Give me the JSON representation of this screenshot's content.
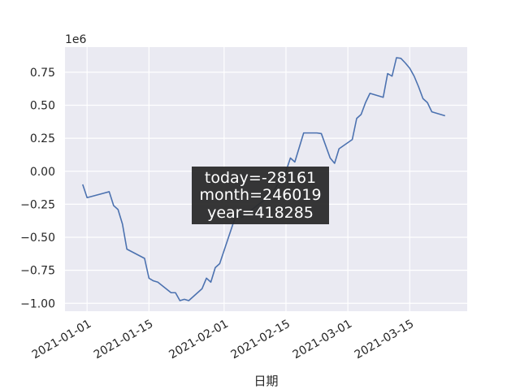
{
  "chart_data": {
    "type": "line",
    "xlabel": "日期",
    "ylabel": "",
    "y_offset_label": "1e6",
    "y_scale": 1000000,
    "xlim": [
      "2020-12-27",
      "2021-03-28"
    ],
    "ylim": [
      -1.06,
      0.94
    ],
    "x_ticks": [
      "2021-01-01",
      "2021-01-15",
      "2021-02-01",
      "2021-02-15",
      "2021-03-01",
      "2021-03-15"
    ],
    "y_ticks": [
      -1.0,
      -0.75,
      -0.5,
      -0.25,
      0.0,
      0.25,
      0.5,
      0.75
    ],
    "y_tick_labels": [
      "−1.00",
      "−0.75",
      "−0.50",
      "−0.25",
      "0.00",
      "0.25",
      "0.50",
      "0.75"
    ],
    "grid": true,
    "line_color": "#4c72b0",
    "background_color": "#eaeaf2",
    "series": [
      {
        "points": [
          [
            "2020-12-31",
            -0.1
          ],
          [
            "2021-01-01",
            -0.2
          ],
          [
            "2021-01-06",
            -0.155
          ],
          [
            "2021-01-07",
            -0.26
          ],
          [
            "2021-01-08",
            -0.29
          ],
          [
            "2021-01-09",
            -0.4
          ],
          [
            "2021-01-10",
            -0.59
          ],
          [
            "2021-01-14",
            -0.66
          ],
          [
            "2021-01-15",
            -0.81
          ],
          [
            "2021-01-16",
            -0.83
          ],
          [
            "2021-01-17",
            -0.84
          ],
          [
            "2021-01-20",
            -0.92
          ],
          [
            "2021-01-21",
            -0.92
          ],
          [
            "2021-01-22",
            -0.98
          ],
          [
            "2021-01-23",
            -0.97
          ],
          [
            "2021-01-24",
            -0.98
          ],
          [
            "2021-01-27",
            -0.89
          ],
          [
            "2021-01-28",
            -0.81
          ],
          [
            "2021-01-29",
            -0.84
          ],
          [
            "2021-01-30",
            -0.73
          ],
          [
            "2021-01-31",
            -0.7
          ],
          [
            "2021-02-03",
            -0.4
          ],
          [
            "2021-02-04",
            -0.31
          ],
          [
            "2021-02-05",
            -0.35
          ],
          [
            "2021-02-10",
            -0.22
          ],
          [
            "2021-02-12",
            -0.16
          ],
          [
            "2021-02-15",
            0.0
          ],
          [
            "2021-02-16",
            0.1
          ],
          [
            "2021-02-17",
            0.07
          ],
          [
            "2021-02-19",
            0.29
          ],
          [
            "2021-02-22",
            0.29
          ],
          [
            "2021-02-23",
            0.285
          ],
          [
            "2021-02-25",
            0.1
          ],
          [
            "2021-02-26",
            0.06
          ],
          [
            "2021-02-27",
            0.17
          ],
          [
            "2021-03-02",
            0.24
          ],
          [
            "2021-03-03",
            0.4
          ],
          [
            "2021-03-04",
            0.43
          ],
          [
            "2021-03-05",
            0.52
          ],
          [
            "2021-03-06",
            0.59
          ],
          [
            "2021-03-09",
            0.56
          ],
          [
            "2021-03-10",
            0.74
          ],
          [
            "2021-03-11",
            0.72
          ],
          [
            "2021-03-12",
            0.86
          ],
          [
            "2021-03-13",
            0.855
          ],
          [
            "2021-03-14",
            0.82
          ],
          [
            "2021-03-15",
            0.78
          ],
          [
            "2021-03-16",
            0.72
          ],
          [
            "2021-03-17",
            0.64
          ],
          [
            "2021-03-18",
            0.55
          ],
          [
            "2021-03-19",
            0.52
          ],
          [
            "2021-03-20",
            0.45
          ],
          [
            "2021-03-23",
            0.42
          ]
        ]
      }
    ],
    "annotation": {
      "lines": [
        "today=-28161",
        "month=246019",
        "year=418285"
      ],
      "box_color": "#2b2b2b",
      "text_color": "#ffffff"
    }
  }
}
